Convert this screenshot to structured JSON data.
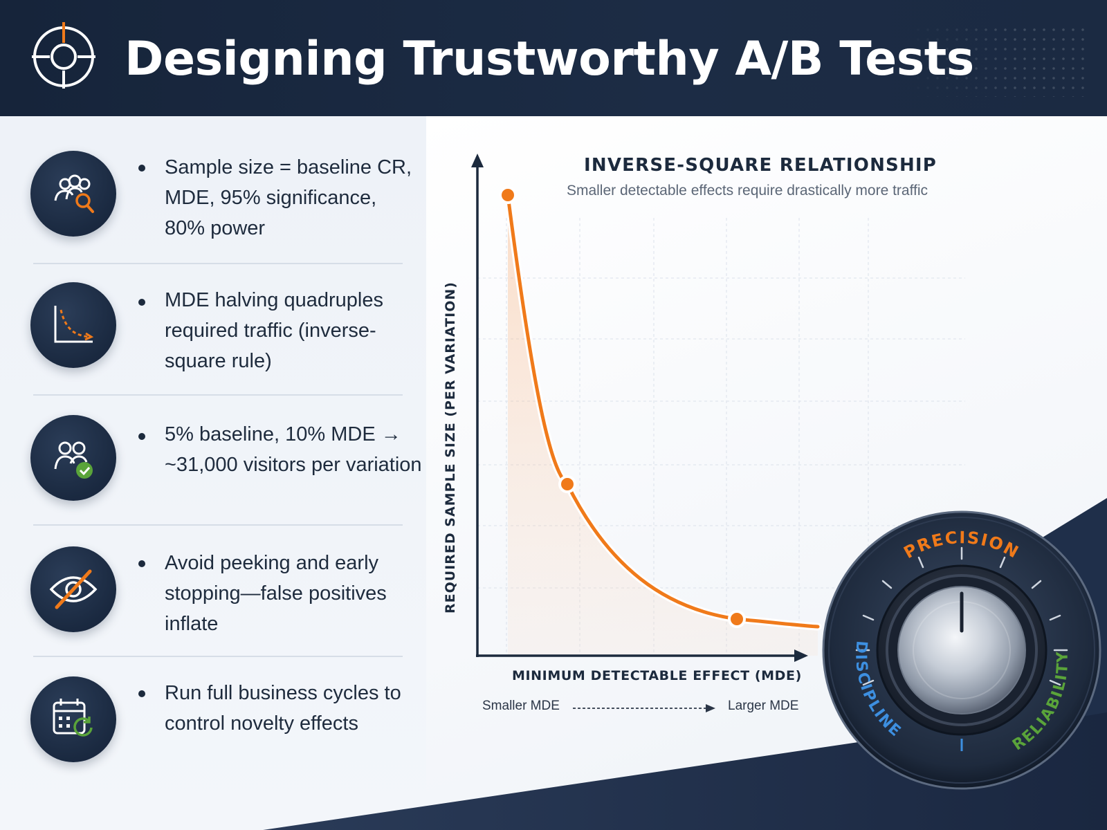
{
  "header": {
    "title": "Designing Trustworthy A/B Tests",
    "logo_icon": "crosshair-target-icon",
    "background": "#16243a",
    "accent": "#f07a1a"
  },
  "items": [
    {
      "icon": "people-search-icon",
      "text": "Sample size = baseline CR, MDE, 95% significance, 80% power"
    },
    {
      "icon": "curve-down-chart-icon",
      "text": "MDE halving quadruples required traffic (inverse-square rule)"
    },
    {
      "icon": "people-check-icon",
      "text": "5% baseline, 10% MDE → ~31,000 visitors per variation"
    },
    {
      "icon": "eye-crossed-icon",
      "text": "Avoid peeking and early stopping—false positives inflate"
    },
    {
      "icon": "calendar-refresh-icon",
      "text": "Run full business cycles to control novelty effects"
    }
  ],
  "chart": {
    "title": "INVERSE-SQUARE RELATIONSHIP",
    "subtitle": "Smaller detectable effects require drastically more traffic",
    "xlabel": "MINIMUM DETECTABLE EFFECT (MDE)",
    "ylabel": "REQUIRED SAMPLE SIZE (PER VARIATION)",
    "x_left_note": "Smaller MDE",
    "x_right_note": "Larger MDE",
    "curve_color": "#f07a1a"
  },
  "dial": {
    "labels": [
      "PRECISION",
      "DISCIPLINE",
      "RELIABILITY"
    ],
    "colors": {
      "precision": "#f07a1a",
      "discipline": "#3d8fe0",
      "reliability": "#5aa43a"
    }
  }
}
